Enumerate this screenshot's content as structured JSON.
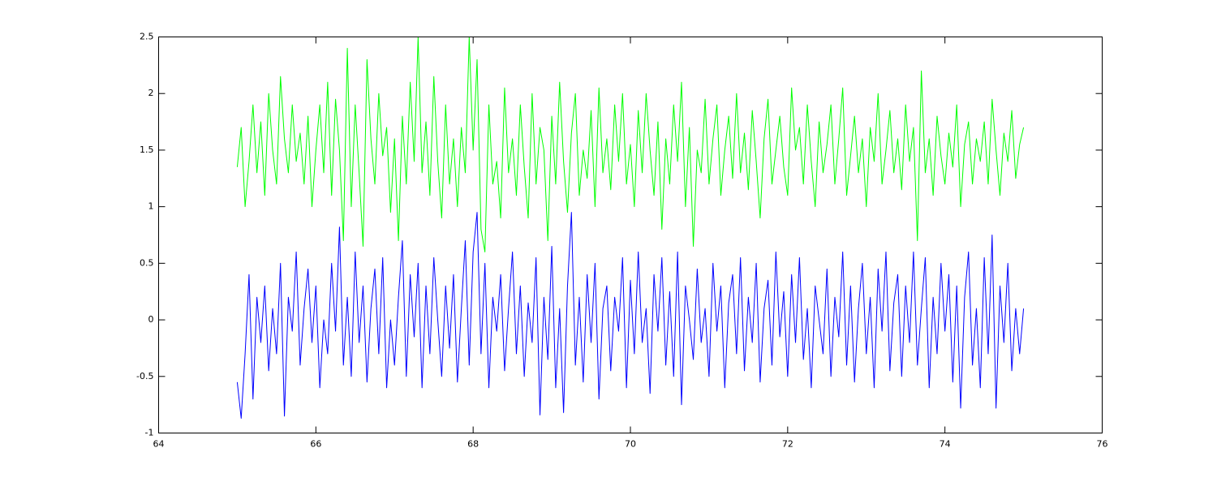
{
  "chart_data": {
    "type": "line",
    "x": [
      65,
      65.05,
      65.1,
      65.15,
      65.2,
      65.25,
      65.3,
      65.35,
      65.4,
      65.45,
      65.5,
      65.55,
      65.6,
      65.65,
      65.7,
      65.75,
      65.8,
      65.85,
      65.9,
      65.95,
      66,
      66.05,
      66.1,
      66.15,
      66.2,
      66.25,
      66.3,
      66.35,
      66.4,
      66.45,
      66.5,
      66.55,
      66.6,
      66.65,
      66.7,
      66.75,
      66.8,
      66.85,
      66.9,
      66.95,
      67,
      67.05,
      67.1,
      67.15,
      67.2,
      67.25,
      67.3,
      67.35,
      67.4,
      67.45,
      67.5,
      67.55,
      67.6,
      67.65,
      67.7,
      67.75,
      67.8,
      67.85,
      67.9,
      67.95,
      68,
      68.05,
      68.1,
      68.15,
      68.2,
      68.25,
      68.3,
      68.35,
      68.4,
      68.45,
      68.5,
      68.55,
      68.6,
      68.65,
      68.7,
      68.75,
      68.8,
      68.85,
      68.9,
      68.95,
      69,
      69.05,
      69.1,
      69.15,
      69.2,
      69.25,
      69.3,
      69.35,
      69.4,
      69.45,
      69.5,
      69.55,
      69.6,
      69.65,
      69.7,
      69.75,
      69.8,
      69.85,
      69.9,
      69.95,
      70,
      70.05,
      70.1,
      70.15,
      70.2,
      70.25,
      70.3,
      70.35,
      70.4,
      70.45,
      70.5,
      70.55,
      70.6,
      70.65,
      70.7,
      70.75,
      70.8,
      70.85,
      70.9,
      70.95,
      71,
      71.05,
      71.1,
      71.15,
      71.2,
      71.25,
      71.3,
      71.35,
      71.4,
      71.45,
      71.5,
      71.55,
      71.6,
      71.65,
      71.7,
      71.75,
      71.8,
      71.85,
      71.9,
      71.95,
      72,
      72.05,
      72.1,
      72.15,
      72.2,
      72.25,
      72.3,
      72.35,
      72.4,
      72.45,
      72.5,
      72.55,
      72.6,
      72.65,
      72.7,
      72.75,
      72.8,
      72.85,
      72.9,
      72.95,
      73,
      73.05,
      73.1,
      73.15,
      73.2,
      73.25,
      73.3,
      73.35,
      73.4,
      73.45,
      73.5,
      73.55,
      73.6,
      73.65,
      73.7,
      73.75,
      73.8,
      73.85,
      73.9,
      73.95,
      74,
      74.05,
      74.1,
      74.15,
      74.2,
      74.25,
      74.3,
      74.35,
      74.4,
      74.45,
      74.5,
      74.55,
      74.6,
      74.65,
      74.7,
      74.75,
      74.8,
      74.85,
      74.9,
      74.95,
      75
    ],
    "series": [
      {
        "color": "#00ff00",
        "values": [
          1.35,
          1.7,
          1.0,
          1.4,
          1.9,
          1.3,
          1.75,
          1.1,
          2.0,
          1.5,
          1.2,
          2.15,
          1.6,
          1.3,
          1.9,
          1.4,
          1.65,
          1.2,
          1.8,
          1.0,
          1.5,
          1.9,
          1.3,
          2.1,
          1.1,
          1.95,
          1.5,
          0.7,
          2.4,
          1.0,
          1.9,
          1.3,
          0.65,
          2.3,
          1.6,
          1.2,
          2.0,
          1.45,
          1.7,
          0.95,
          1.6,
          0.7,
          1.8,
          1.2,
          2.1,
          1.4,
          2.5,
          1.3,
          1.75,
          1.1,
          2.15,
          1.4,
          0.9,
          1.9,
          1.2,
          1.6,
          1.0,
          1.7,
          1.3,
          2.5,
          1.5,
          2.3,
          0.8,
          0.6,
          1.9,
          1.2,
          1.4,
          0.9,
          2.05,
          1.3,
          1.6,
          1.1,
          1.9,
          1.35,
          0.9,
          2.0,
          1.2,
          1.7,
          1.5,
          0.7,
          1.8,
          1.2,
          2.1,
          1.4,
          0.95,
          1.65,
          2.0,
          1.1,
          1.5,
          1.25,
          1.85,
          1.0,
          2.05,
          1.3,
          1.6,
          1.15,
          1.9,
          1.4,
          2.0,
          1.2,
          1.55,
          1.0,
          1.85,
          1.3,
          2.0,
          1.5,
          1.1,
          1.75,
          0.8,
          1.6,
          1.2,
          1.9,
          1.4,
          2.1,
          1.0,
          1.7,
          0.65,
          1.5,
          1.3,
          1.95,
          1.2,
          1.6,
          1.9,
          1.1,
          1.5,
          1.8,
          1.25,
          2.0,
          1.3,
          1.65,
          1.15,
          1.85,
          1.4,
          0.9,
          1.6,
          1.95,
          1.2,
          1.5,
          1.8,
          1.35,
          1.1,
          2.05,
          1.5,
          1.7,
          1.2,
          1.9,
          1.4,
          1.0,
          1.75,
          1.3,
          1.55,
          1.9,
          1.2,
          1.6,
          2.05,
          1.1,
          1.45,
          1.8,
          1.3,
          1.6,
          1.0,
          1.7,
          1.4,
          2.0,
          1.2,
          1.5,
          1.85,
          1.3,
          1.6,
          1.15,
          1.9,
          1.4,
          1.7,
          0.7,
          2.2,
          1.3,
          1.6,
          1.1,
          1.8,
          1.45,
          1.2,
          1.65,
          1.35,
          1.9,
          1.0,
          1.55,
          1.75,
          1.2,
          1.6,
          1.4,
          1.75,
          1.2,
          1.95,
          1.5,
          1.1,
          1.65,
          1.4,
          1.85,
          1.25,
          1.55,
          1.7
        ]
      },
      {
        "color": "#0000ff",
        "values": [
          -0.55,
          -0.87,
          -0.3,
          0.4,
          -0.7,
          0.2,
          -0.2,
          0.3,
          -0.45,
          0.1,
          -0.3,
          0.5,
          -0.85,
          0.2,
          -0.1,
          0.6,
          -0.4,
          0.1,
          0.45,
          -0.2,
          0.3,
          -0.6,
          0.0,
          -0.3,
          0.5,
          -0.1,
          0.82,
          -0.4,
          0.2,
          -0.5,
          0.6,
          -0.2,
          0.3,
          -0.55,
          0.1,
          0.45,
          -0.3,
          0.55,
          -0.6,
          0.0,
          -0.4,
          0.2,
          0.7,
          -0.5,
          0.4,
          -0.15,
          0.5,
          -0.6,
          0.3,
          -0.3,
          0.55,
          0.0,
          -0.5,
          0.3,
          -0.25,
          0.4,
          -0.55,
          0.1,
          0.7,
          -0.4,
          0.6,
          0.95,
          -0.3,
          0.5,
          -0.6,
          0.2,
          -0.1,
          0.4,
          -0.45,
          0.1,
          0.6,
          -0.3,
          0.3,
          -0.5,
          0.15,
          -0.2,
          0.55,
          -0.84,
          0.2,
          -0.35,
          0.65,
          -0.6,
          0.1,
          -0.82,
          0.3,
          0.95,
          -0.4,
          0.2,
          -0.55,
          0.4,
          -0.2,
          0.5,
          -0.7,
          0.1,
          0.3,
          -0.45,
          0.2,
          -0.1,
          0.55,
          -0.6,
          0.35,
          -0.3,
          0.6,
          -0.2,
          0.1,
          -0.65,
          0.4,
          -0.1,
          0.55,
          -0.4,
          0.25,
          -0.5,
          0.6,
          -0.75,
          0.3,
          0.0,
          -0.35,
          0.45,
          -0.2,
          0.1,
          -0.5,
          0.5,
          -0.1,
          0.3,
          -0.6,
          0.15,
          0.4,
          -0.3,
          0.55,
          -0.45,
          0.2,
          -0.2,
          0.5,
          -0.55,
          0.1,
          0.35,
          -0.4,
          0.6,
          -0.15,
          0.25,
          -0.5,
          0.4,
          -0.2,
          0.55,
          -0.35,
          0.1,
          -0.6,
          0.3,
          0.0,
          -0.3,
          0.45,
          -0.5,
          0.2,
          -0.15,
          0.6,
          -0.4,
          0.3,
          -0.55,
          0.1,
          0.5,
          -0.3,
          0.2,
          -0.6,
          0.45,
          -0.1,
          0.6,
          -0.45,
          0.15,
          0.4,
          -0.5,
          0.3,
          -0.2,
          0.6,
          -0.4,
          0.1,
          0.55,
          -0.6,
          0.2,
          -0.3,
          0.5,
          -0.1,
          0.4,
          -0.55,
          0.3,
          -0.78,
          0.2,
          0.6,
          -0.4,
          0.1,
          -0.6,
          0.55,
          -0.3,
          0.75,
          -0.78,
          0.3,
          -0.2,
          0.5,
          -0.45,
          0.1,
          -0.3,
          0.1
        ]
      }
    ],
    "xlim": [
      64,
      76
    ],
    "xticks": [
      64,
      66,
      68,
      70,
      72,
      74,
      76
    ],
    "ylim": [
      -1,
      2.5
    ],
    "yticks": [
      -1,
      -0.5,
      0,
      0.5,
      1,
      1.5,
      2,
      2.5
    ],
    "grid": false
  }
}
